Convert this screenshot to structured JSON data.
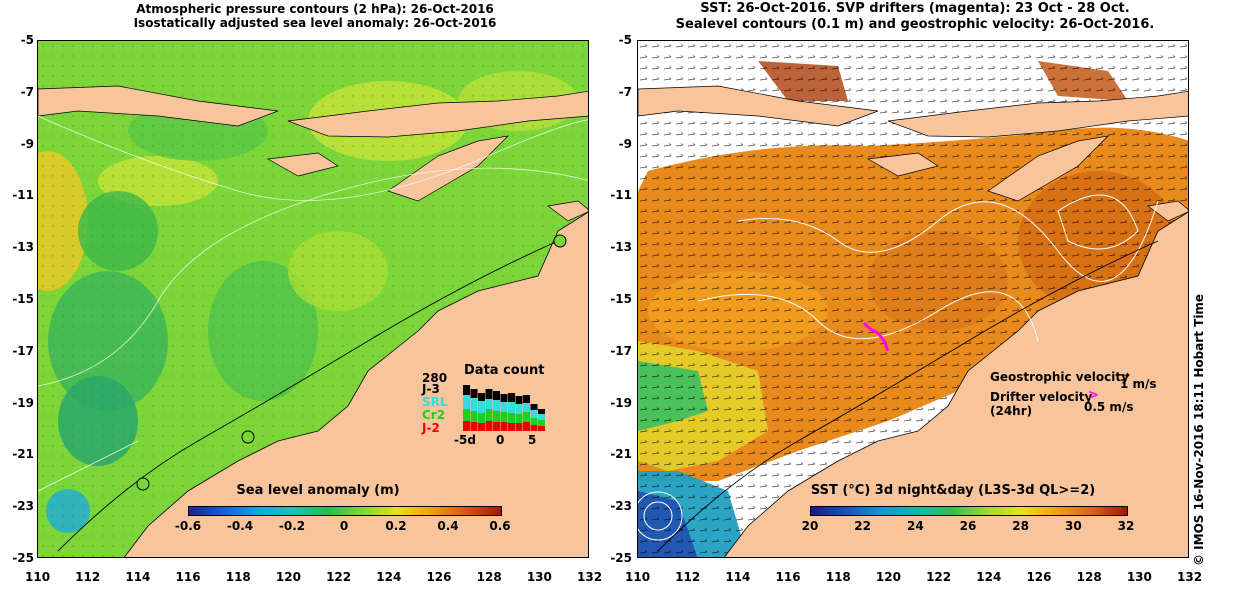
{
  "left_panel": {
    "title_line1": "Atmospheric pressure contours (2 hPa): 26-Oct-2016",
    "title_line2": "Isostatically adjusted sea level anomaly: 26-Oct-2016",
    "colorbar": {
      "label": "Sea level anomaly (m)",
      "ticks": [
        "-0.6",
        "-0.4",
        "-0.2",
        "0",
        "0.2",
        "0.4",
        "0.6"
      ]
    },
    "data_count": {
      "title": "Data count",
      "max_label": "280",
      "missions": [
        {
          "name": "J-3",
          "color": "#000000"
        },
        {
          "name": "SRL",
          "color": "#33dddd"
        },
        {
          "name": "Cr2",
          "color": "#22cc22"
        },
        {
          "name": "J-2",
          "color": "#ee0000"
        }
      ],
      "x_ticks": [
        "-5d",
        "0",
        "5"
      ]
    }
  },
  "right_panel": {
    "title_line1": "SST: 26-Oct-2016. SVP drifters (magenta): 23 Oct - 28 Oct.",
    "title_line2": "Sealevel contours (0.1 m) and geostrophic velocity: 26-Oct-2016.",
    "colorbar": {
      "label": "SST (°C) 3d night&day (L3S-3d QL>=2)",
      "ticks": [
        "20",
        "22",
        "24",
        "26",
        "28",
        "30",
        "32"
      ]
    },
    "legend": {
      "geostrophic_label": "Geostrophic velocity",
      "geostrophic_scale": "1 m/s",
      "drifter_label_line1": "Drifter velocity",
      "drifter_label_line2": "(24hr)",
      "drifter_scale": "0.5 m/s"
    },
    "credit": "© IMOS 16-Nov-2016 18:11 Hobart Time"
  },
  "axes": {
    "lat_ticks": [
      "-5",
      "-7",
      "-9",
      "-11",
      "-13",
      "-15",
      "-17",
      "-19",
      "-21",
      "-23",
      "-25"
    ],
    "lon_ticks": [
      "110",
      "112",
      "114",
      "116",
      "118",
      "120",
      "122",
      "124",
      "126",
      "128",
      "130",
      "132"
    ]
  },
  "colors": {
    "land": "#f7c49c",
    "sla_base": "#7cd63a",
    "sst_base": "#e88a1c",
    "drifter": "#ff00ff"
  }
}
